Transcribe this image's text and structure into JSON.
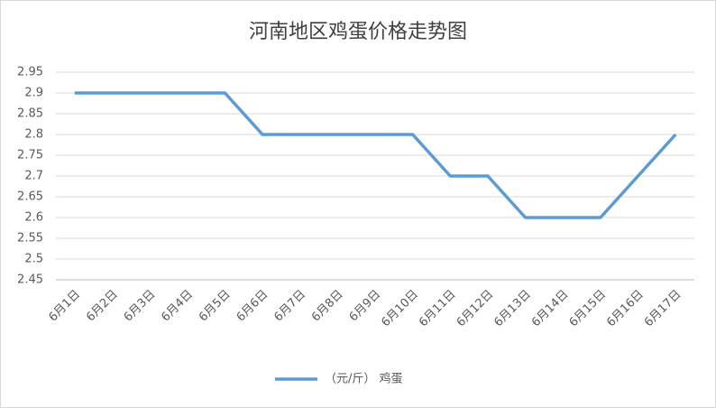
{
  "chart_data": {
    "type": "line",
    "title": "河南地区鸡蛋价格走势图",
    "categories": [
      "6月1日",
      "6月2日",
      "6月3日",
      "6月4日",
      "6月5日",
      "6月6日",
      "6月7日",
      "6月8日",
      "6月9日",
      "6月10日",
      "6月11日",
      "6月12日",
      "6月13日",
      "6月14日",
      "6月15日",
      "6月16日",
      "6月17日"
    ],
    "series": [
      {
        "name": "（元/斤） 鸡蛋",
        "color": "#5b9bd5",
        "values": [
          2.9,
          2.9,
          2.9,
          2.9,
          2.9,
          2.8,
          2.8,
          2.8,
          2.8,
          2.8,
          2.7,
          2.7,
          2.6,
          2.6,
          2.6,
          2.7,
          2.8
        ]
      }
    ],
    "ylim": [
      2.45,
      2.95
    ],
    "yticks": [
      2.45,
      2.5,
      2.55,
      2.6,
      2.65,
      2.7,
      2.75,
      2.8,
      2.85,
      2.9,
      2.95
    ],
    "grid": true,
    "legend": "bottom"
  }
}
